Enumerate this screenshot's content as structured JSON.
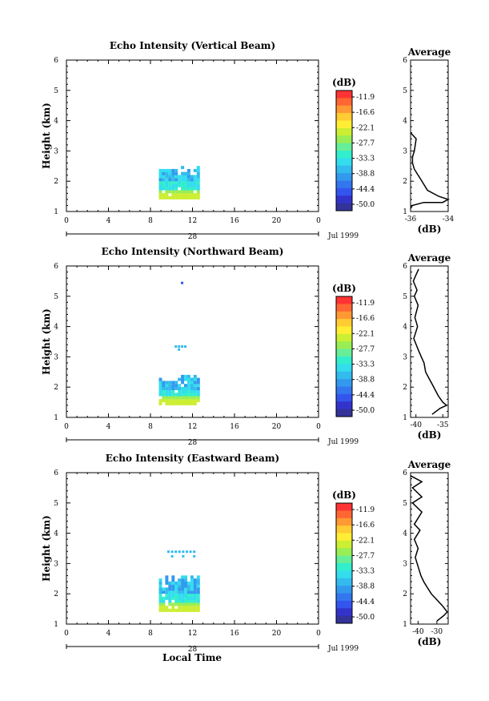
{
  "colorbar": {
    "unit_label": "(dB)",
    "ticks": [
      "-11.9",
      "-16.6",
      "-22.1",
      "-27.7",
      "-33.3",
      "-38.8",
      "-44.4",
      "-50.0"
    ],
    "colors": [
      "#ff3333",
      "#ff6633",
      "#ff9933",
      "#ffcc33",
      "#ffee33",
      "#ccee33",
      "#99ee55",
      "#66ee99",
      "#33eecc",
      "#33ddee",
      "#33bbee",
      "#3399ee",
      "#3377ee",
      "#3355ee",
      "#3333cc",
      "#333399"
    ]
  },
  "x_axis": {
    "ticks": [
      "0",
      "4",
      "8",
      "12",
      "16",
      "20",
      "0"
    ],
    "date_day": "28",
    "month_year": "Jul 1999",
    "label": "Local Time"
  },
  "y_axis": {
    "label": "Height (km)",
    "ticks": [
      "1",
      "2",
      "3",
      "4",
      "5",
      "6"
    ],
    "ylim": [
      1,
      6
    ]
  },
  "avg_axis": {
    "title": "Average",
    "xlabel": "(dB)"
  },
  "chart_data": [
    {
      "type": "heatmap",
      "title": "Echo Intensity (Vertical Beam)",
      "x_range_hours": [
        0,
        24
      ],
      "y_range_km": [
        1,
        6
      ],
      "echo_region": {
        "time_start_h": 8.8,
        "time_end_h": 12.6,
        "height_bottom_km": 1.4,
        "height_top_km": 2.5
      },
      "average": {
        "xlim": [
          -36,
          -34
        ],
        "xticks": [
          "-36",
          "-34"
        ],
        "x": [
          -36.0,
          -35.7,
          -35.8,
          -35.9,
          -35.9,
          -35.8,
          -35.6,
          -35.5,
          -35.3,
          -35.1,
          -34.5,
          -34.0,
          -34.3,
          -35.3,
          -35.9,
          -36.0
        ],
        "y": [
          3.6,
          3.4,
          3.0,
          2.8,
          2.6,
          2.4,
          2.2,
          2.1,
          1.9,
          1.7,
          1.5,
          1.4,
          1.3,
          1.3,
          1.2,
          1.1
        ]
      }
    },
    {
      "type": "heatmap",
      "title": "Echo Intensity (Northward Beam)",
      "x_range_hours": [
        0,
        24
      ],
      "y_range_km": [
        1,
        6
      ],
      "echo_region": {
        "time_start_h": 8.8,
        "time_end_h": 12.6,
        "height_bottom_km": 1.4,
        "height_top_km": 2.4
      },
      "average": {
        "xlim": [
          -41,
          -34
        ],
        "xticks": [
          "-40",
          "-35"
        ],
        "x": [
          -39.5,
          -40.0,
          -40.5,
          -39.8,
          -40.3,
          -39.6,
          -40.2,
          -39.7,
          -40.4,
          -39.5,
          -39.0,
          -38.5,
          -38.2,
          -37.6,
          -37.0,
          -36.4,
          -35.8,
          -35.0,
          -34.3,
          -35.5,
          -37.0
        ],
        "y": [
          5.9,
          5.7,
          5.5,
          5.2,
          5.0,
          4.7,
          4.3,
          4.0,
          3.6,
          3.2,
          3.0,
          2.8,
          2.5,
          2.3,
          2.1,
          1.9,
          1.7,
          1.5,
          1.4,
          1.3,
          1.1
        ]
      }
    },
    {
      "type": "heatmap",
      "title": "Echo Intensity (Eastward Beam)",
      "x_range_hours": [
        0,
        24
      ],
      "y_range_km": [
        1,
        6
      ],
      "echo_region": {
        "time_start_h": 8.8,
        "time_end_h": 12.6,
        "height_bottom_km": 1.4,
        "height_top_km": 2.6
      },
      "average": {
        "xlim": [
          -44,
          -24
        ],
        "xticks": [
          "-40",
          "-30"
        ],
        "x": [
          -44.0,
          -38.0,
          -43.0,
          -38.0,
          -43.0,
          -38.0,
          -42.0,
          -39.0,
          -42.0,
          -40.0,
          -41.5,
          -40.0,
          -38.5,
          -37.0,
          -35.0,
          -33.0,
          -30.0,
          -27.0,
          -24.5,
          -26.0,
          -30.0
        ],
        "y": [
          5.9,
          5.7,
          5.5,
          5.2,
          5.0,
          4.7,
          4.3,
          4.1,
          3.8,
          3.5,
          3.2,
          2.9,
          2.6,
          2.4,
          2.2,
          2.0,
          1.8,
          1.6,
          1.4,
          1.3,
          1.1
        ]
      }
    }
  ]
}
